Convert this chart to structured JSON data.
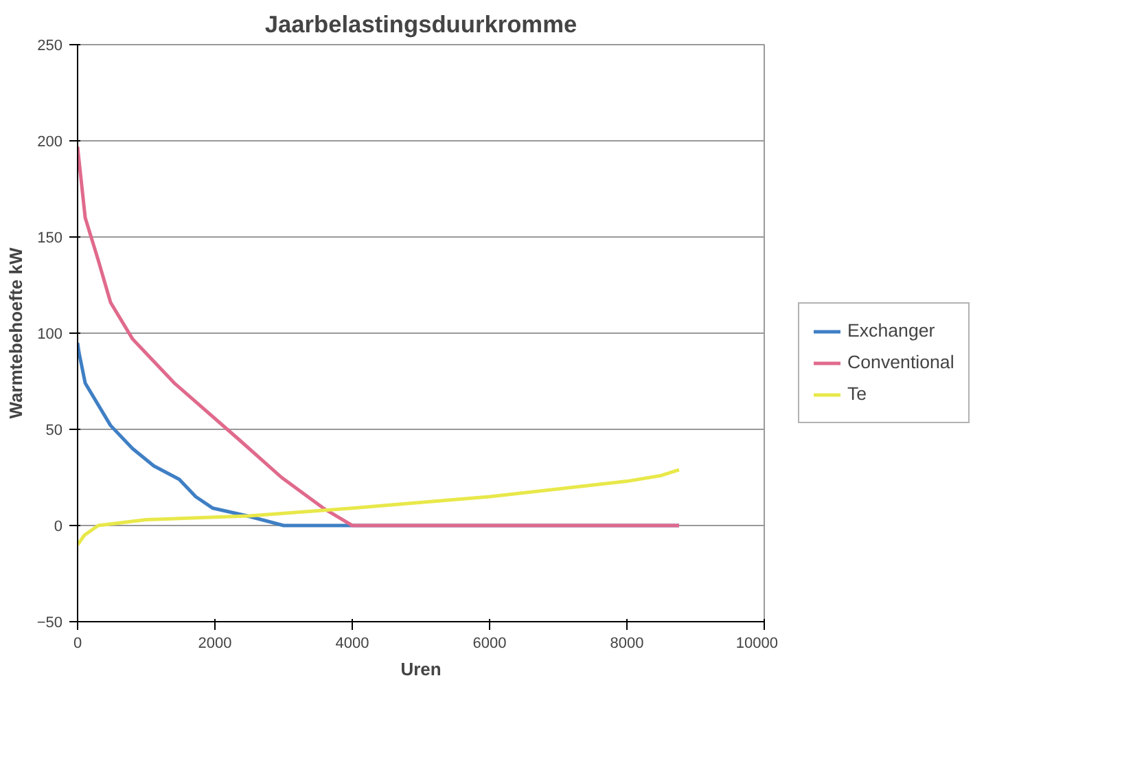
{
  "chart_data": {
    "type": "line",
    "title": "Jaarbelastingsduurkromme",
    "xlabel": "Uren",
    "ylabel": "Warmtebehoefte kW",
    "xlim": [
      0,
      10000
    ],
    "xticks": [
      0,
      2000,
      4000,
      6000,
      8000,
      10000
    ],
    "ylim": [
      -50,
      250
    ],
    "yticks": [
      -50,
      0,
      50,
      100,
      150,
      200,
      250
    ],
    "grid": "y",
    "legend": "right",
    "line_style": "solid",
    "marker": "none",
    "series": [
      {
        "name": "Exchanger",
        "color": "#3f7fc4",
        "x": [
          0,
          20,
          111,
          480,
          800,
          1110,
          1480,
          1720,
          1970,
          2470,
          3000,
          4000,
          8760
        ],
        "values": [
          95,
          90,
          74,
          52,
          40,
          31,
          24,
          15,
          9,
          5,
          0,
          0,
          0
        ]
      },
      {
        "name": "Conventional",
        "color": "#e06a8c",
        "x": [
          0,
          20,
          111,
          300,
          480,
          800,
          1410,
          2340,
          2970,
          3580,
          4000,
          8760
        ],
        "values": [
          197,
          190,
          160,
          138,
          116,
          97,
          74,
          45,
          25,
          9,
          0,
          0
        ]
      },
      {
        "name": "Te",
        "color": "#e8e84a",
        "x": [
          0,
          100,
          300,
          1000,
          2500,
          4000,
          6000,
          8000,
          8500,
          8760
        ],
        "values": [
          -10,
          -5,
          0,
          3,
          5,
          9,
          15,
          23,
          26,
          29
        ]
      }
    ]
  }
}
